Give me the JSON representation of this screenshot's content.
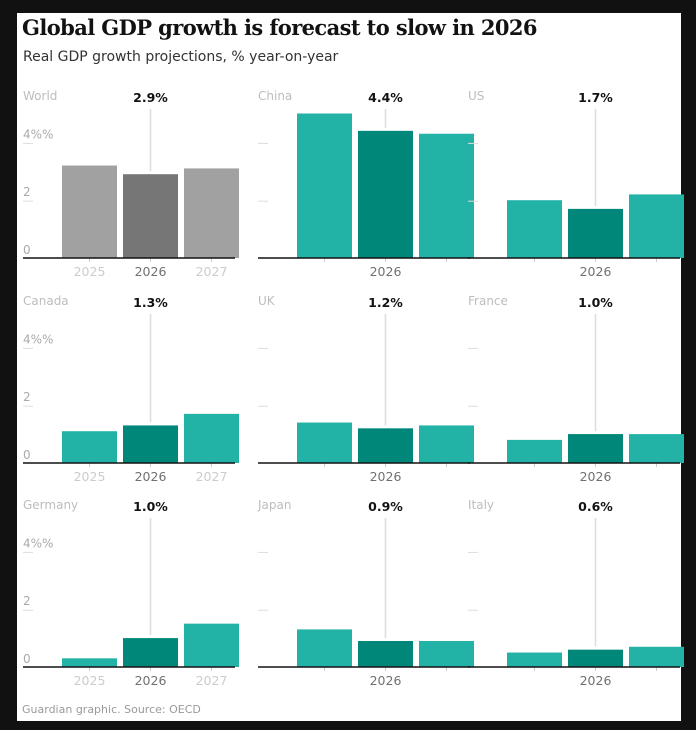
{
  "header": {
    "title": "Global GDP growth is forecast to slow in 2026",
    "subtitle": "Real GDP growth projections, % year-on-year"
  },
  "footer": {
    "source": "Guardian graphic. Source: OECD"
  },
  "colors": {
    "world_other": "#a1a1a1",
    "world_highlight": "#767676",
    "country_other": "#22b2a6",
    "country_highlight": "#008779",
    "axis": "#121212",
    "leader_line": "#dcdcdc",
    "label_muted": "#bdbdbd",
    "label_dark": "#121212",
    "tick_year_muted": "#cccccc",
    "tick_year_active": "#707070"
  },
  "chart_data": {
    "type": "bar",
    "title": "Global GDP growth is forecast to slow in 2026",
    "subtitle": "Real GDP growth projections, % year-on-year",
    "xlabel": "",
    "ylabel": "% year-on-year",
    "categories": [
      "2025",
      "2026",
      "2027"
    ],
    "highlight_category": "2026",
    "ylim": [
      0,
      5
    ],
    "yticks": [
      0,
      2,
      4
    ],
    "ytick_labels": [
      "0",
      "2",
      "4%%"
    ],
    "grid": false,
    "legend": "none",
    "panels": [
      {
        "name": "World",
        "values": [
          3.2,
          2.9,
          3.1
        ],
        "annotation": "2.9%",
        "show_y_labels": true,
        "show_all_years": true
      },
      {
        "name": "China",
        "values": [
          5.0,
          4.4,
          4.3
        ],
        "annotation": "4.4%",
        "show_y_labels": false,
        "show_all_years": false
      },
      {
        "name": "US",
        "values": [
          2.0,
          1.7,
          2.2
        ],
        "annotation": "1.7%",
        "show_y_labels": false,
        "show_all_years": false
      },
      {
        "name": "Canada",
        "values": [
          1.1,
          1.3,
          1.7
        ],
        "annotation": "1.3%",
        "show_y_labels": true,
        "show_all_years": true
      },
      {
        "name": "UK",
        "values": [
          1.4,
          1.2,
          1.3
        ],
        "annotation": "1.2%",
        "show_y_labels": false,
        "show_all_years": false
      },
      {
        "name": "France",
        "values": [
          0.8,
          1.0,
          1.0
        ],
        "annotation": "1.0%",
        "show_y_labels": false,
        "show_all_years": false
      },
      {
        "name": "Germany",
        "values": [
          0.3,
          1.0,
          1.5
        ],
        "annotation": "1.0%",
        "show_y_labels": true,
        "show_all_years": true
      },
      {
        "name": "Japan",
        "values": [
          1.3,
          0.9,
          0.9
        ],
        "annotation": "0.9%",
        "show_y_labels": false,
        "show_all_years": false
      },
      {
        "name": "Italy",
        "values": [
          0.5,
          0.6,
          0.7
        ],
        "annotation": "0.6%",
        "show_y_labels": false,
        "show_all_years": false
      }
    ]
  }
}
